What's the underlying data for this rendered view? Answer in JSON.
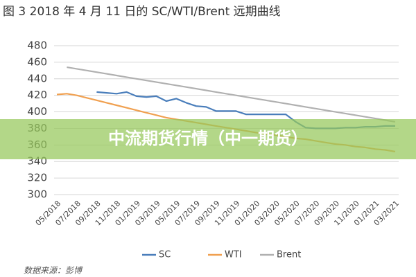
{
  "chart_data": {
    "type": "line",
    "title": "图 3 2018 年 4 月 11 日的 SC/WTI/Brent 远期曲线",
    "source": "数据来源：彭博",
    "categories": [
      "05/2018",
      null,
      "07/2018",
      null,
      "09/2018",
      null,
      "11/2018",
      null,
      "01/2019",
      null,
      "03/2019",
      null,
      "05/2019",
      null,
      "07/2019",
      null,
      "09/2019",
      null,
      "11/2019",
      null,
      "01/2020",
      null,
      "03/2020",
      null,
      "05/2020",
      null,
      "07/2020",
      null,
      "09/2020",
      null,
      "11/2020",
      null,
      "01/2021",
      null,
      "03/2021"
    ],
    "series": [
      {
        "name": "SC",
        "color": "#4a7ebb",
        "values": [
          null,
          null,
          null,
          null,
          424,
          423,
          422,
          424,
          419,
          418,
          419,
          413,
          416,
          411,
          407,
          406,
          401,
          401,
          401,
          397,
          397,
          397,
          397,
          397,
          388,
          381,
          380,
          380,
          380,
          381,
          381,
          382,
          382,
          383,
          383
        ]
      },
      {
        "name": "WTI",
        "color": "#f0a050",
        "values": [
          421,
          422,
          420,
          417,
          414,
          411,
          408,
          405,
          402,
          399,
          396,
          393,
          391,
          389,
          387,
          385,
          383,
          381,
          379,
          377,
          375,
          373,
          372,
          370,
          368,
          367,
          365,
          363,
          361,
          360,
          358,
          357,
          355,
          354,
          352
        ]
      },
      {
        "name": "Brent",
        "color": "#b0b0b0",
        "values": [
          null,
          454,
          452,
          450,
          448,
          446,
          444,
          442,
          440,
          438,
          436,
          434,
          432,
          430,
          428,
          426,
          424,
          422,
          420,
          418,
          416,
          414,
          412,
          410,
          408,
          406,
          404,
          402,
          400,
          398,
          396,
          394,
          392,
          390,
          388
        ]
      }
    ],
    "ylim": [
      300,
      480
    ],
    "yticks": [
      300,
      320,
      340,
      360,
      380,
      400,
      420,
      440,
      460,
      480
    ],
    "grid": true,
    "legend": "bottom"
  },
  "banner": "中流期货行情（中一期货）"
}
